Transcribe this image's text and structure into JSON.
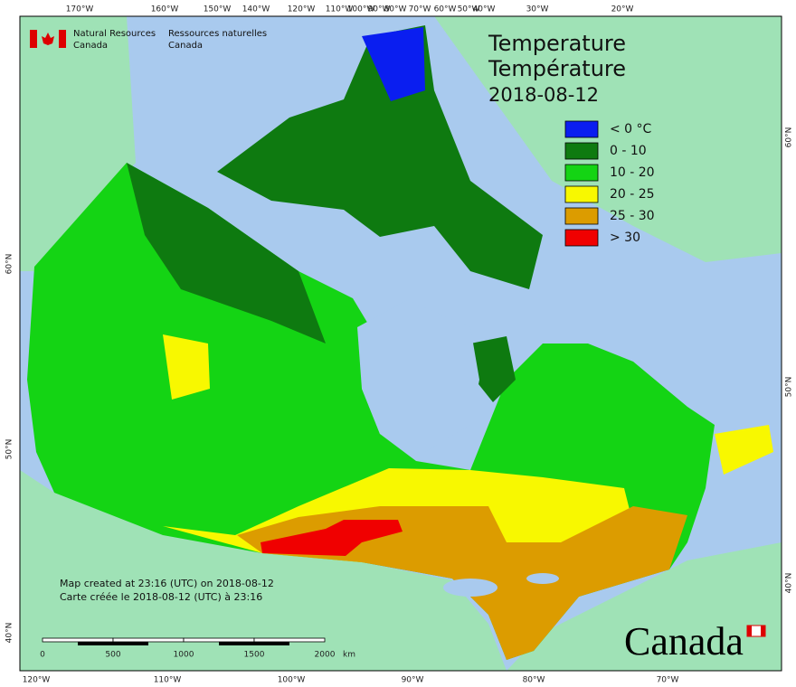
{
  "header": {
    "agency_en": [
      "Natural Resources",
      "Canada"
    ],
    "agency_fr": [
      "Ressources naturelles",
      "Canada"
    ],
    "title": [
      "Temperature",
      "Température"
    ],
    "date": "2018-08-12"
  },
  "legend": [
    {
      "label": "< 0 °C",
      "color": "#0a1ef0"
    },
    {
      "label": "0 - 10",
      "color": "#0e7a10"
    },
    {
      "label": "10 - 20",
      "color": "#14d414"
    },
    {
      "label": "20 - 25",
      "color": "#f8f800"
    },
    {
      "label": "25 - 30",
      "color": "#dc9c00"
    },
    {
      "label": "> 30",
      "color": "#f00000"
    }
  ],
  "notes": [
    "Map created at 23:16 (UTC) on 2018-08-12",
    "Carte créée le 2018-08-12 (UTC) à 23:16"
  ],
  "scale": {
    "ticks": [
      "0",
      "500",
      "1000",
      "1500",
      "2000"
    ],
    "unit": "km"
  },
  "graticule": {
    "top": [
      "170°W",
      "160°W",
      "150°W",
      "140°W",
      "120°W",
      "110°W",
      "100°W",
      "90°W",
      "80°W",
      "70°W",
      "60°W",
      "50°W",
      "40°W",
      "30°W",
      "20°W"
    ],
    "bottom": [
      "120°W",
      "110°W",
      "100°W",
      "90°W",
      "80°W",
      "70°W"
    ],
    "left": [
      "60°N",
      "50°N",
      "40°N"
    ],
    "right": [
      "60°N",
      "50°N",
      "40°N"
    ]
  },
  "wordmark": "Canada"
}
